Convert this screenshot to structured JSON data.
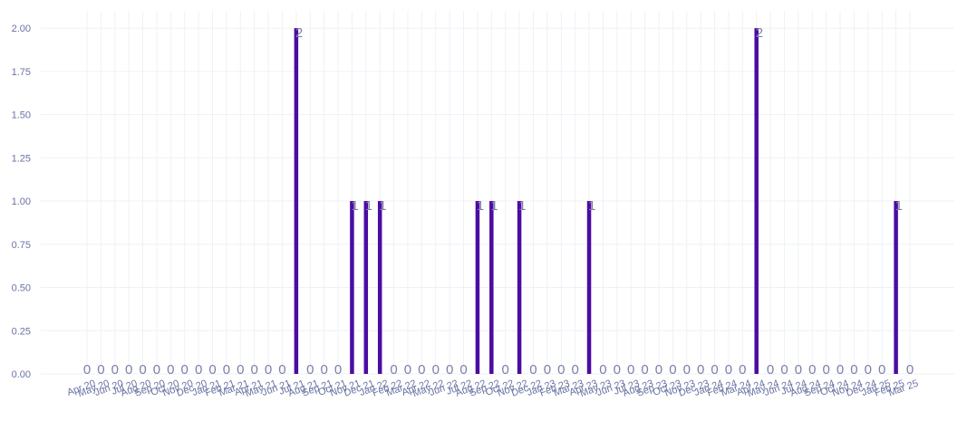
{
  "chart_data": {
    "type": "bar",
    "categories": [
      "Apr 20",
      "May 20",
      "Jun 20",
      "Jul 20",
      "Aug 20",
      "Sep 20",
      "Oct 20",
      "Nov 20",
      "Dec 20",
      "Jan 21",
      "Feb 21",
      "Mar 21",
      "Apr 21",
      "May 21",
      "Jun 21",
      "Jul 21",
      "Aug 21",
      "Sep 21",
      "Oct 21",
      "Nov 21",
      "Dec 21",
      "Jan 22",
      "Feb 22",
      "Mar 22",
      "Apr 22",
      "May 22",
      "Jun 22",
      "Jul 22",
      "Aug 22",
      "Sep 22",
      "Oct 22",
      "Nov 22",
      "Dec 22",
      "Jan 23",
      "Feb 23",
      "Mar 23",
      "Apr 23",
      "May 23",
      "Jun 23",
      "Jul 23",
      "Aug 23",
      "Sep 23",
      "Oct 23",
      "Nov 23",
      "Dec 23",
      "Jan 24",
      "Feb 24",
      "Mar 24",
      "Apr 24",
      "May 24",
      "Jun 24",
      "Jul 24",
      "Aug 24",
      "Sep 24",
      "Oct 24",
      "Nov 24",
      "Dec 24",
      "Jan 25",
      "Feb 25",
      "Mar 25"
    ],
    "values": [
      0,
      0,
      0,
      0,
      0,
      0,
      0,
      0,
      0,
      0,
      0,
      0,
      0,
      0,
      0,
      2,
      0,
      0,
      0,
      1,
      1,
      1,
      0,
      0,
      0,
      0,
      0,
      0,
      1,
      1,
      0,
      1,
      0,
      0,
      0,
      0,
      1,
      0,
      0,
      0,
      0,
      0,
      0,
      0,
      0,
      0,
      0,
      0,
      2,
      0,
      0,
      0,
      0,
      0,
      0,
      0,
      0,
      0,
      1,
      0
    ],
    "yticks": [
      "0.00",
      "0.25",
      "0.50",
      "0.75",
      "1.00",
      "1.25",
      "1.50",
      "1.75",
      "2.00"
    ],
    "ylim": [
      0,
      2.1
    ],
    "grid": true,
    "colors": {
      "bar": "#4b0ca3",
      "tick_text": "#6b73a3",
      "label_text": "#7a80a8",
      "grid": "#eef1f6"
    }
  }
}
